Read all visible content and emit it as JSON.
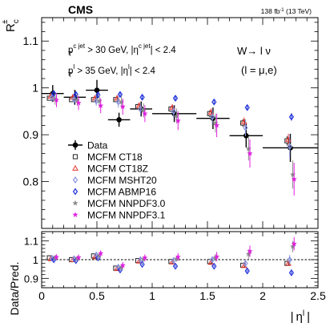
{
  "header": {
    "experiment": "CMS",
    "lumi_prefix": "138 fb",
    "lumi_exp": "-1",
    "lumi_suffix": " (13 TeV)"
  },
  "selection": {
    "line1": {
      "p": "p",
      "sub": "T",
      "sup": "c jet",
      "mid": " > 30 GeV, |η",
      "sup2": "c jet",
      "end": "| < 2.4"
    },
    "line2": {
      "p": "p",
      "sub": "T",
      "sup": "l",
      "mid": " > 35 GeV, |η",
      "sup2": "l",
      "end": "| < 2.4"
    },
    "process": "W→ l ν",
    "lepton": "(l = μ,e)"
  },
  "axes": {
    "ylabel_main": {
      "base": "R",
      "sub": "c",
      "sup": "±"
    },
    "ylabel_ratio": "Data/Pred.",
    "xlabel": "| ηl |"
  },
  "styles": {
    "MCFM CT18": {
      "marker": "square",
      "color": "#222222",
      "dx": -0.03
    },
    "MCFM CT18Z": {
      "marker": "triangle",
      "color": "#e8382f",
      "dx": -0.018
    },
    "MCFM MSHT20": {
      "marker": "diamond",
      "color": "#8a96e0",
      "dx": -0.006
    },
    "MCFM ABMP16": {
      "marker": "diamond",
      "color": "#2233dd",
      "dx": 0.01
    },
    "MCFM NNPDF3.0": {
      "marker": "star",
      "color": "#888888",
      "dx": 0.022
    },
    "MCFM NNPDF3.1": {
      "marker": "star",
      "color": "#e020e0",
      "dx": 0.034
    }
  },
  "chart_data": [
    {
      "type": "scatter",
      "panel": "main",
      "xlim": [
        0,
        2.5
      ],
      "ylim": [
        0.7,
        1.15
      ],
      "xticks": [
        0,
        0.5,
        1,
        1.5,
        2,
        2.5
      ],
      "yticks": [
        0.8,
        0.9,
        1,
        1.1
      ],
      "legend_position": "center-left",
      "series": [
        {
          "name": "Data",
          "marker": "dot",
          "x": [
            0.1,
            0.3,
            0.5,
            0.7,
            0.9,
            1.2,
            1.55,
            1.85,
            2.25
          ],
          "xerr": [
            0.1,
            0.1,
            0.1,
            0.1,
            0.1,
            0.2,
            0.15,
            0.15,
            0.25
          ],
          "y": [
            0.988,
            0.98,
            0.995,
            0.932,
            0.955,
            0.945,
            0.935,
            0.898,
            0.872
          ],
          "yerr": [
            0.018,
            0.016,
            0.022,
            0.015,
            0.016,
            0.018,
            0.023,
            0.025,
            0.03
          ]
        },
        {
          "name": "MCFM CT18",
          "x": [
            0.1,
            0.3,
            0.5,
            0.7,
            0.9,
            1.2,
            1.55,
            1.85,
            2.25
          ],
          "y": [
            0.978,
            0.975,
            0.975,
            0.975,
            0.96,
            0.955,
            0.945,
            0.925,
            0.887
          ],
          "yerr": [
            0.005,
            0.005,
            0.005,
            0.005,
            0.006,
            0.006,
            0.007,
            0.008,
            0.01
          ]
        },
        {
          "name": "MCFM CT18Z",
          "x": [
            0.1,
            0.3,
            0.5,
            0.7,
            0.9,
            1.2,
            1.55,
            1.85,
            2.25
          ],
          "y": [
            0.982,
            0.98,
            0.978,
            0.978,
            0.962,
            0.958,
            0.948,
            0.928,
            0.89
          ],
          "yerr": [
            0.006,
            0.006,
            0.006,
            0.006,
            0.007,
            0.007,
            0.008,
            0.009,
            0.012
          ]
        },
        {
          "name": "MCFM MSHT20",
          "x": [
            0.1,
            0.3,
            0.5,
            0.7,
            0.9,
            1.2,
            1.55,
            1.85,
            2.25
          ],
          "y": [
            0.98,
            0.975,
            0.972,
            0.97,
            0.955,
            0.95,
            0.938,
            0.915,
            0.875
          ],
          "yerr": [
            0.01,
            0.01,
            0.01,
            0.012,
            0.012,
            0.013,
            0.015,
            0.018,
            0.025
          ]
        },
        {
          "name": "MCFM ABMP16",
          "x": [
            0.1,
            0.3,
            0.5,
            0.7,
            0.9,
            1.2,
            1.55,
            1.85,
            2.25
          ],
          "y": [
            0.988,
            0.986,
            0.985,
            0.986,
            0.98,
            0.978,
            0.97,
            0.958,
            0.938
          ],
          "yerr": [
            0.004,
            0.004,
            0.004,
            0.004,
            0.004,
            0.005,
            0.005,
            0.006,
            0.008
          ]
        },
        {
          "name": "MCFM NNPDF3.0",
          "x": [
            0.1,
            0.3,
            0.5,
            0.7,
            0.9,
            1.2,
            1.55,
            1.85,
            2.25
          ],
          "y": [
            0.976,
            0.974,
            0.972,
            0.97,
            0.952,
            0.94,
            0.925,
            0.87,
            0.815
          ],
          "yerr": [
            0.012,
            0.012,
            0.013,
            0.014,
            0.015,
            0.016,
            0.02,
            0.025,
            0.03
          ]
        },
        {
          "name": "MCFM NNPDF3.1",
          "x": [
            0.1,
            0.3,
            0.5,
            0.7,
            0.9,
            1.2,
            1.55,
            1.85,
            2.25
          ],
          "y": [
            0.974,
            0.968,
            0.962,
            0.96,
            0.945,
            0.93,
            0.92,
            0.86,
            0.805
          ],
          "yerr": [
            0.015,
            0.015,
            0.016,
            0.017,
            0.018,
            0.02,
            0.025,
            0.03,
            0.035
          ]
        }
      ]
    },
    {
      "type": "scatter",
      "panel": "ratio",
      "xlim": [
        0,
        2.5
      ],
      "ylim": [
        0.85,
        1.15
      ],
      "xticks": [
        0,
        0.5,
        1,
        1.5,
        2,
        2.5
      ],
      "yticks": [
        0.9,
        1,
        1.1
      ],
      "reference_line": 1,
      "series": [
        {
          "name": "MCFM CT18",
          "x": [
            0.1,
            0.3,
            0.5,
            0.7,
            0.9,
            1.2,
            1.55,
            1.85,
            2.25
          ],
          "y": [
            1.01,
            1.0,
            1.02,
            0.955,
            0.995,
            0.99,
            0.99,
            0.97,
            0.98
          ],
          "yerr": [
            0.005,
            0.005,
            0.005,
            0.005,
            0.006,
            0.006,
            0.007,
            0.008,
            0.01
          ]
        },
        {
          "name": "MCFM CT18Z",
          "x": [
            0.1,
            0.3,
            0.5,
            0.7,
            0.9,
            1.2,
            1.55,
            1.85,
            2.25
          ],
          "y": [
            1.005,
            1.0,
            1.015,
            0.952,
            0.992,
            0.987,
            0.985,
            0.968,
            0.98
          ],
          "yerr": [
            0.006,
            0.006,
            0.006,
            0.006,
            0.007,
            0.007,
            0.008,
            0.009,
            0.012
          ]
        },
        {
          "name": "MCFM MSHT20",
          "x": [
            0.1,
            0.3,
            0.5,
            0.7,
            0.9,
            1.2,
            1.55,
            1.85,
            2.25
          ],
          "y": [
            1.008,
            1.005,
            1.025,
            0.96,
            1.0,
            0.995,
            1.0,
            0.98,
            1.0
          ],
          "yerr": [
            0.01,
            0.01,
            0.01,
            0.012,
            0.012,
            0.013,
            0.015,
            0.018,
            0.025
          ]
        },
        {
          "name": "MCFM ABMP16",
          "x": [
            0.1,
            0.3,
            0.5,
            0.7,
            0.9,
            1.2,
            1.55,
            1.85,
            2.25
          ],
          "y": [
            1.0,
            0.995,
            1.01,
            0.945,
            0.975,
            0.965,
            0.965,
            0.94,
            0.93
          ],
          "yerr": [
            0.004,
            0.004,
            0.004,
            0.004,
            0.004,
            0.005,
            0.005,
            0.006,
            0.008
          ]
        },
        {
          "name": "MCFM NNPDF3.0",
          "x": [
            0.1,
            0.3,
            0.5,
            0.7,
            0.9,
            1.2,
            1.55,
            1.85,
            2.25
          ],
          "y": [
            1.012,
            1.006,
            1.023,
            0.96,
            1.003,
            1.005,
            1.01,
            1.03,
            1.07
          ],
          "yerr": [
            0.012,
            0.012,
            0.013,
            0.014,
            0.015,
            0.016,
            0.02,
            0.025,
            0.03
          ]
        },
        {
          "name": "MCFM NNPDF3.1",
          "x": [
            0.1,
            0.3,
            0.5,
            0.7,
            0.9,
            1.2,
            1.55,
            1.85,
            2.25
          ],
          "y": [
            1.014,
            1.012,
            1.034,
            0.97,
            1.01,
            1.015,
            1.016,
            1.045,
            1.085
          ],
          "yerr": [
            0.015,
            0.015,
            0.016,
            0.017,
            0.018,
            0.02,
            0.025,
            0.03,
            0.035
          ]
        }
      ]
    }
  ]
}
